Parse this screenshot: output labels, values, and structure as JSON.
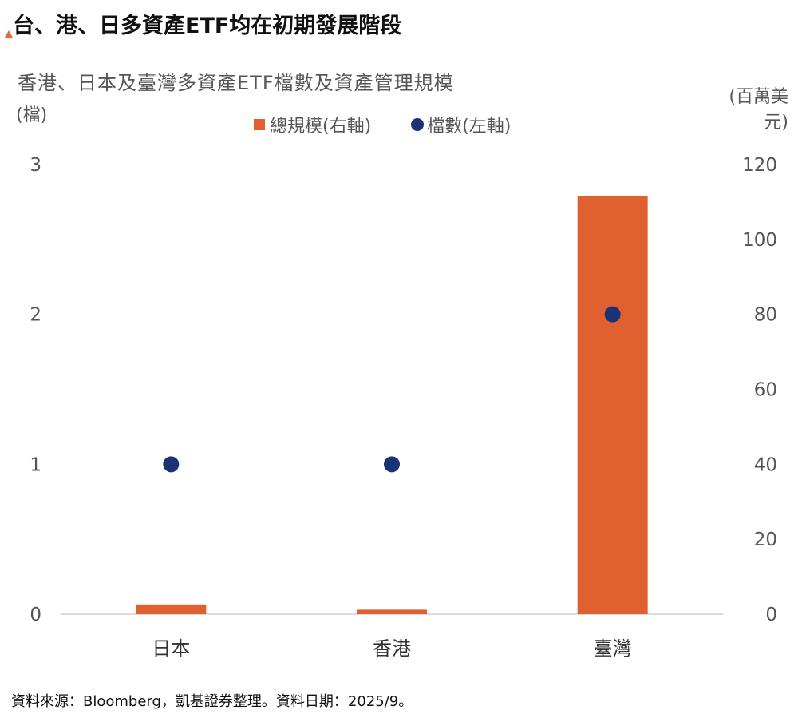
{
  "page_title": "台、港、日多資產ETF均在初期發展階段",
  "source_note": "資料來源：Bloomberg，凱基證券整理。資料日期：2025/9。",
  "colors": {
    "bar": "#e0612f",
    "dot": "#1b3275",
    "accent": "#e46a2e"
  },
  "chart_data": {
    "type": "bar",
    "title": "香港、日本及臺灣多資產ETF檔數及資產管理規模",
    "categories": [
      "日本",
      "香港",
      "臺灣"
    ],
    "series": [
      {
        "name": "總規模(右軸)",
        "kind": "bar",
        "axis": "right",
        "values": [
          2.6,
          1.2,
          111.5
        ]
      },
      {
        "name": "檔數(左軸)",
        "kind": "scatter",
        "axis": "left",
        "values": [
          1,
          1,
          2
        ]
      }
    ],
    "left_axis": {
      "label": "(檔)",
      "range": [
        0,
        3
      ],
      "ticks": [
        "0",
        "1",
        "2",
        "3"
      ]
    },
    "right_axis": {
      "label_line1": "(百萬美",
      "label_line2": "元)",
      "range": [
        0,
        120
      ],
      "ticks": [
        "0",
        "20",
        "40",
        "60",
        "80",
        "100",
        "120"
      ]
    },
    "grid": false,
    "legend_position": "top-center"
  }
}
